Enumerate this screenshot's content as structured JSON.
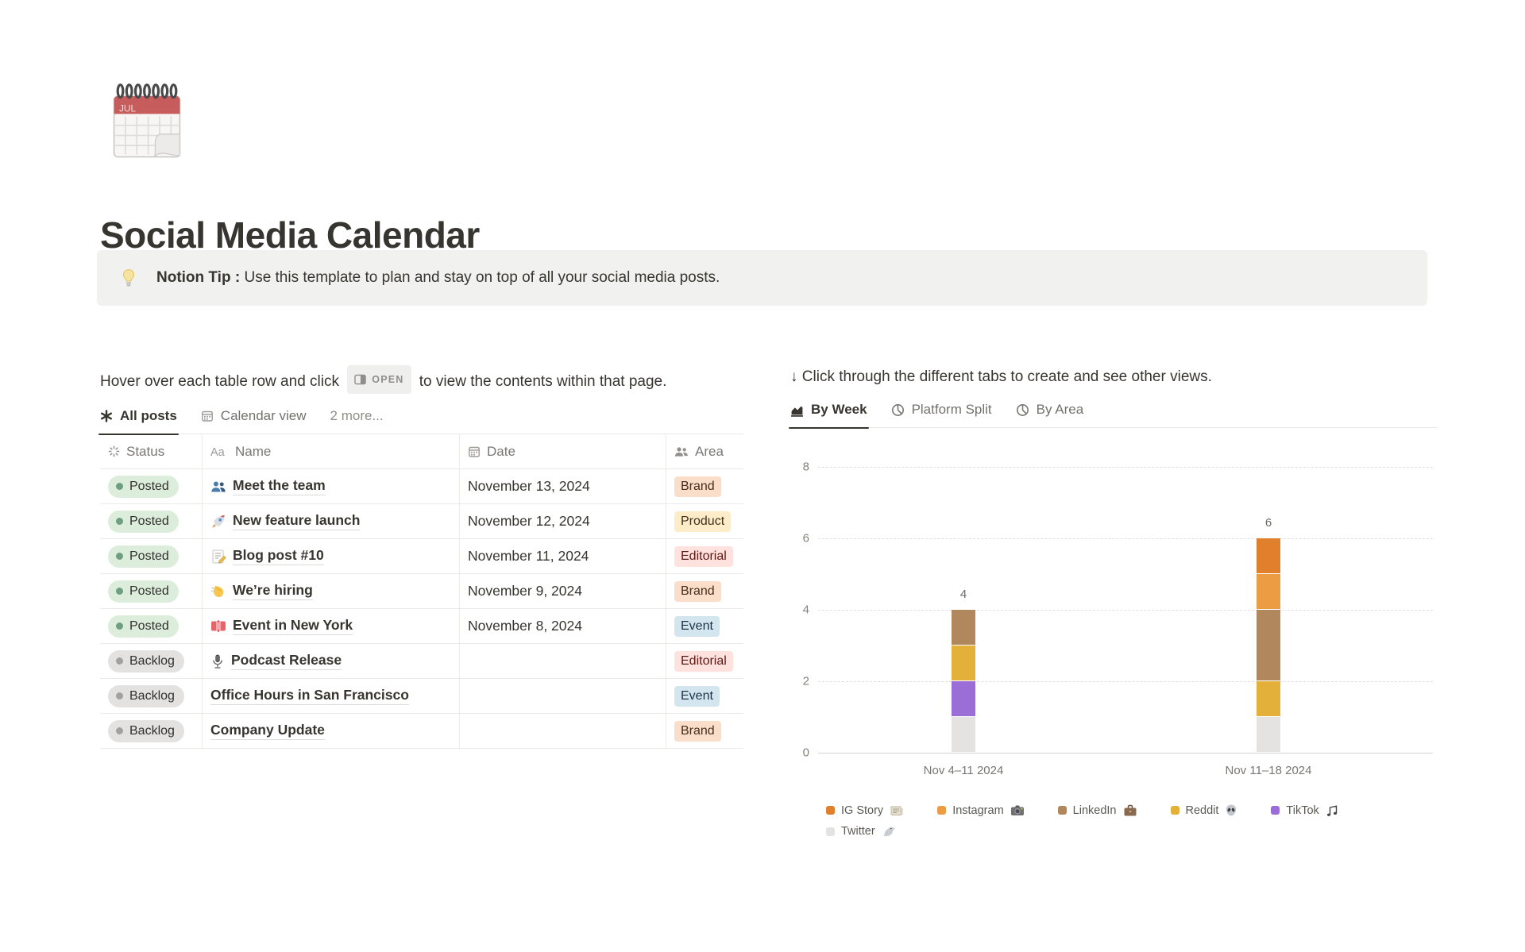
{
  "page": {
    "icon": "calendar-page-icon",
    "title": "Social Media Calendar",
    "callout": {
      "icon": "bulb-icon",
      "bold": "Notion Tip :",
      "text": " Use this template to plan and stay on top of all your social media posts."
    }
  },
  "left": {
    "instruction_before": "Hover over each table row and click",
    "open_chip": "OPEN",
    "open_chip_icon": "open-peek-icon",
    "instruction_after": "to view the contents within that page.",
    "tabs": [
      {
        "label": "All posts",
        "icon": "table-view-icon",
        "active": true
      },
      {
        "label": "Calendar view",
        "icon": "calendar-icon",
        "active": false
      },
      {
        "label": "2 more...",
        "icon": null,
        "active": false
      }
    ],
    "table": {
      "columns": [
        {
          "label": "Status",
          "icon": "status-icon"
        },
        {
          "label": "Name",
          "icon": "aa-icon"
        },
        {
          "label": "Date",
          "icon": "calendar-icon"
        },
        {
          "label": "Area",
          "icon": "people-gray-icon"
        }
      ],
      "rows": [
        {
          "status": "Posted",
          "status_color": "green",
          "icon": "people-blue-icon",
          "name": "Meet the team",
          "date": "November 13, 2024",
          "area": "Brand",
          "area_color": "orange"
        },
        {
          "status": "Posted",
          "status_color": "green",
          "icon": "rocket-icon",
          "name": "New feature launch",
          "date": "November 12, 2024",
          "area": "Product",
          "area_color": "yellow"
        },
        {
          "status": "Posted",
          "status_color": "green",
          "icon": "memo-icon",
          "name": "Blog post #10",
          "date": "November 11, 2024",
          "area": "Editorial",
          "area_color": "red"
        },
        {
          "status": "Posted",
          "status_color": "green",
          "icon": "wave-icon",
          "name": "We’re hiring",
          "date": "November 9, 2024",
          "area": "Brand",
          "area_color": "orange"
        },
        {
          "status": "Posted",
          "status_color": "green",
          "icon": "ticket-icon",
          "name": "Event in New York",
          "date": "November 8, 2024",
          "area": "Event",
          "area_color": "blue"
        },
        {
          "status": "Backlog",
          "status_color": "gray",
          "icon": "mic-icon",
          "name": "Podcast Release",
          "date": "",
          "area": "Editorial",
          "area_color": "red"
        },
        {
          "status": "Backlog",
          "status_color": "gray",
          "icon": null,
          "name": "Office Hours in San Francisco",
          "date": "",
          "area": "Event",
          "area_color": "blue"
        },
        {
          "status": "Backlog",
          "status_color": "gray",
          "icon": null,
          "name": "Company Update",
          "date": "",
          "area": "Brand",
          "area_color": "orange"
        }
      ]
    }
  },
  "right": {
    "instruction": "↓ Click through the different tabs to create and see other views.",
    "tabs": [
      {
        "label": "By Week",
        "icon": "bar-chart-icon",
        "active": true
      },
      {
        "label": "Platform Split",
        "icon": "pie-icon",
        "active": false
      },
      {
        "label": "By Area",
        "icon": "pie-icon",
        "active": false
      }
    ]
  },
  "chart_data": {
    "type": "bar",
    "stacked": true,
    "categories": [
      "Nov 4–11 2024",
      "Nov 11–18 2024"
    ],
    "series": [
      {
        "name": "IG Story",
        "emoji_icon": "newspaper-icon",
        "color": "#E0802C",
        "values": [
          0,
          1
        ]
      },
      {
        "name": "Instagram",
        "emoji_icon": "camera-icon",
        "color": "#EC9D44",
        "values": [
          0,
          1
        ]
      },
      {
        "name": "LinkedIn",
        "emoji_icon": "briefcase-icon",
        "color": "#B1875D",
        "values": [
          1,
          2
        ]
      },
      {
        "name": "Reddit",
        "emoji_icon": "alien-icon",
        "color": "#E3B03A",
        "values": [
          1,
          1
        ]
      },
      {
        "name": "TikTok",
        "emoji_icon": "music-icon",
        "color": "#9A6DD7",
        "values": [
          1,
          0
        ]
      },
      {
        "name": "Twitter",
        "emoji_icon": "bird-icon",
        "color": "#E4E3E1",
        "values": [
          1,
          1
        ]
      }
    ],
    "totals": [
      4,
      6
    ],
    "y_ticks": [
      0,
      2,
      4,
      6,
      8
    ],
    "ylim": [
      0,
      8
    ],
    "grid": "horizontal-dashed",
    "legend_position": "bottom",
    "stacking_order_bottom_to_top": [
      "Twitter",
      "TikTok",
      "Reddit",
      "LinkedIn",
      "Instagram",
      "IG Story"
    ]
  }
}
